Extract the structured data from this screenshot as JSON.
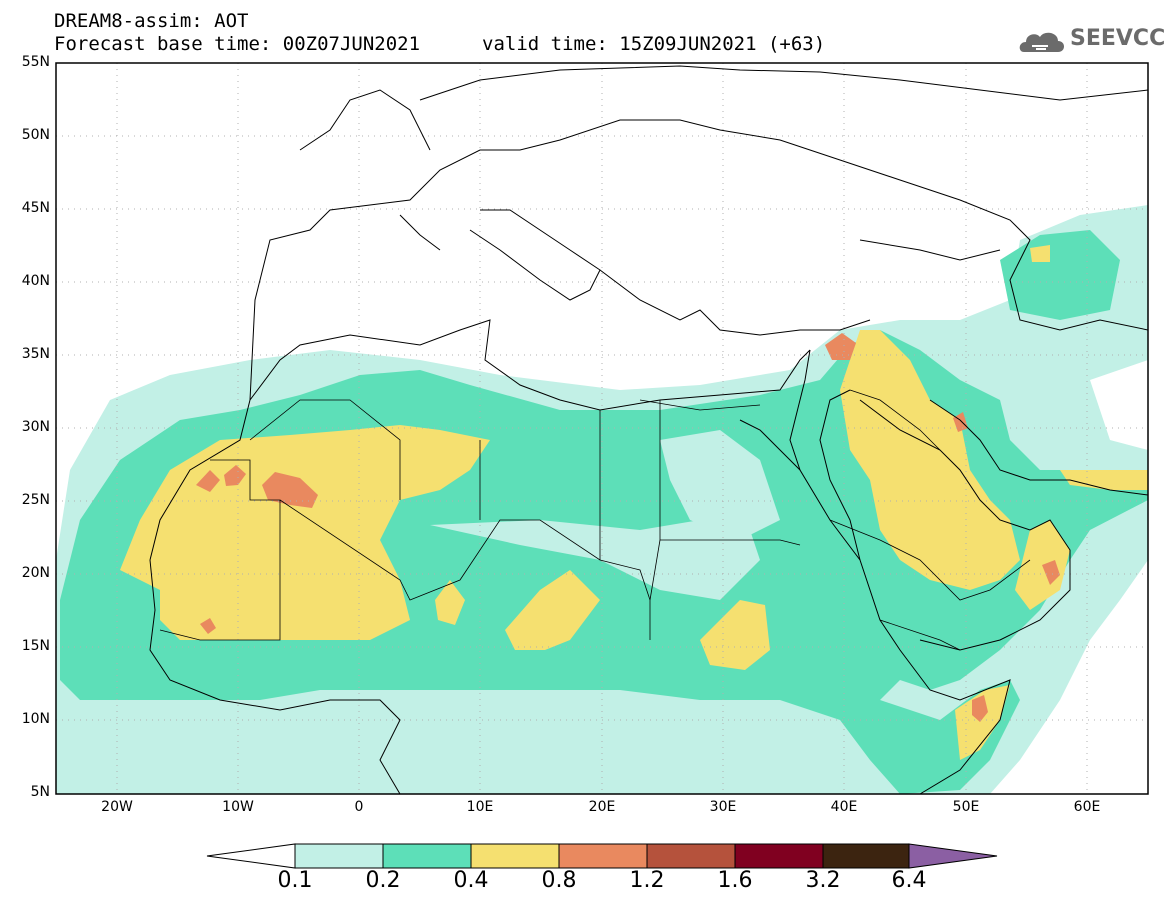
{
  "header": {
    "title": "DREAM8-assim: AOT",
    "base_time": "Forecast base time: 00Z07JUN2021",
    "valid_time": "valid time: 15Z09JUN2021 (+63)"
  },
  "logo": {
    "text": "SEEVCCC",
    "icon": "cloud-icon"
  },
  "axes": {
    "lat_ticks": [
      "55N",
      "50N",
      "45N",
      "40N",
      "35N",
      "30N",
      "25N",
      "20N",
      "15N",
      "10N",
      "5N"
    ],
    "lon_ticks": [
      "20W",
      "10W",
      "0",
      "10E",
      "20E",
      "30E",
      "40E",
      "50E",
      "60E"
    ],
    "lon_range": [
      -25,
      65
    ],
    "lat_range": [
      5,
      55
    ]
  },
  "colorbar": {
    "labels": [
      "0.1",
      "0.2",
      "0.4",
      "0.8",
      "1.2",
      "1.6",
      "3.2",
      "6.4"
    ],
    "colors": [
      "#ffffff",
      "#c2f0e6",
      "#5ddfb8",
      "#f5e070",
      "#e9895f",
      "#b5523c",
      "#800020",
      "#3c2410",
      "#8b5fa3"
    ]
  }
}
